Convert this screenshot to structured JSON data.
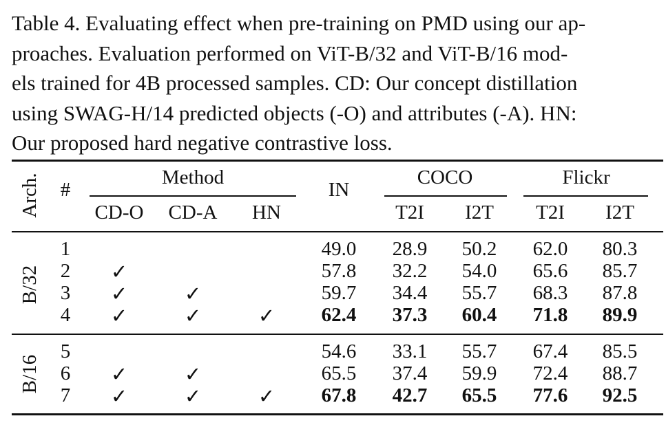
{
  "caption": {
    "line1": "Table 4.  Evaluating effect when pre-training on PMD using our ap-",
    "line2": "proaches.  Evaluation performed on ViT-B/32 and ViT-B/16 mod-",
    "line3": "els trained for 4B processed samples.  CD: Our concept distillation",
    "line4": "using SWAG-H/14 predicted objects (-O) and attributes (-A).  HN:",
    "line5": "Our proposed hard negative contrastive loss."
  },
  "header": {
    "arch": "Arch.",
    "num": "#",
    "method": "Method",
    "in": "IN",
    "coco": "COCO",
    "flickr": "Flickr",
    "cd_o": "CD-O",
    "cd_a": "CD-A",
    "hn": "HN",
    "coco_t2i": "T2I",
    "coco_i2t": "I2T",
    "flickr_t2i": "T2I",
    "flickr_i2t": "I2T"
  },
  "groups": [
    {
      "arch": "B/32",
      "rows": [
        {
          "num": "1",
          "cd_o": "",
          "cd_a": "",
          "hn": "",
          "in": "49.0",
          "coco_t2i": "28.9",
          "coco_i2t": "50.2",
          "flickr_t2i": "62.0",
          "flickr_i2t": "80.3"
        },
        {
          "num": "2",
          "cd_o": "✓",
          "cd_a": "",
          "hn": "",
          "in": "57.8",
          "coco_t2i": "32.2",
          "coco_i2t": "54.0",
          "flickr_t2i": "65.6",
          "flickr_i2t": "85.7"
        },
        {
          "num": "3",
          "cd_o": "✓",
          "cd_a": "✓",
          "hn": "",
          "in": "59.7",
          "coco_t2i": "34.4",
          "coco_i2t": "55.7",
          "flickr_t2i": "68.3",
          "flickr_i2t": "87.8"
        },
        {
          "num": "4",
          "cd_o": "✓",
          "cd_a": "✓",
          "hn": "✓",
          "in": "62.4",
          "coco_t2i": "37.3",
          "coco_i2t": "60.4",
          "flickr_t2i": "71.8",
          "flickr_i2t": "89.9"
        }
      ]
    },
    {
      "arch": "B/16",
      "rows": [
        {
          "num": "5",
          "cd_o": "",
          "cd_a": "",
          "hn": "",
          "in": "54.6",
          "coco_t2i": "33.1",
          "coco_i2t": "55.7",
          "flickr_t2i": "67.4",
          "flickr_i2t": "85.5"
        },
        {
          "num": "6",
          "cd_o": "✓",
          "cd_a": "✓",
          "hn": "",
          "in": "65.5",
          "coco_t2i": "37.4",
          "coco_i2t": "59.9",
          "flickr_t2i": "72.4",
          "flickr_i2t": "88.7"
        },
        {
          "num": "7",
          "cd_o": "✓",
          "cd_a": "✓",
          "hn": "✓",
          "in": "67.8",
          "coco_t2i": "42.7",
          "coco_i2t": "65.5",
          "flickr_t2i": "77.6",
          "flickr_i2t": "92.5"
        }
      ]
    }
  ]
}
